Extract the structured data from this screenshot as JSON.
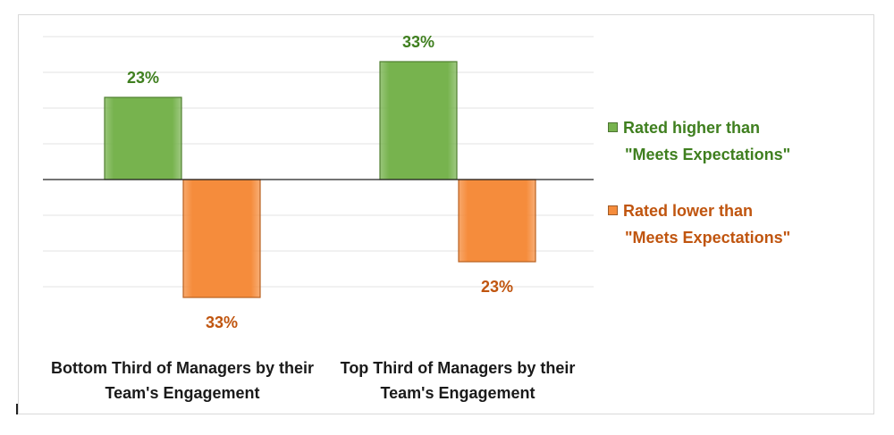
{
  "chart_data": {
    "type": "bar",
    "categories": [
      "Bottom Third of Managers by their Team's Engagement",
      "Top Third of Managers by their Team's Engagement"
    ],
    "category_lines": [
      [
        "Bottom Third of Managers by their",
        "Team's Engagement"
      ],
      [
        "Top Third of Managers by their",
        "Team's Engagement"
      ]
    ],
    "series": [
      {
        "name": "Rated higher than \"Meets Expectations\"",
        "values": [
          23,
          33
        ],
        "direction": "up",
        "color": "#77b34e",
        "label_color": "#3f7f1f"
      },
      {
        "name": "Rated lower than \"Meets Expectations\"",
        "values": [
          33,
          23
        ],
        "direction": "down",
        "color": "#f58c3c",
        "label_color": "#c0550f"
      }
    ],
    "data_labels": [
      [
        "23%",
        "33%"
      ],
      [
        "33%",
        "23%"
      ]
    ],
    "ylim": [
      -35,
      45
    ],
    "grid": true,
    "legend_position": "right"
  },
  "legend": {
    "items": [
      {
        "line1": "Rated higher than",
        "line2": "\"Meets Expectations\"",
        "color": "#77b34e",
        "text_color": "#3f7f1f"
      },
      {
        "line1": "Rated lower than",
        "line2": "\"Meets Expectations\"",
        "color": "#f58c3c",
        "text_color": "#c0550f"
      }
    ]
  }
}
